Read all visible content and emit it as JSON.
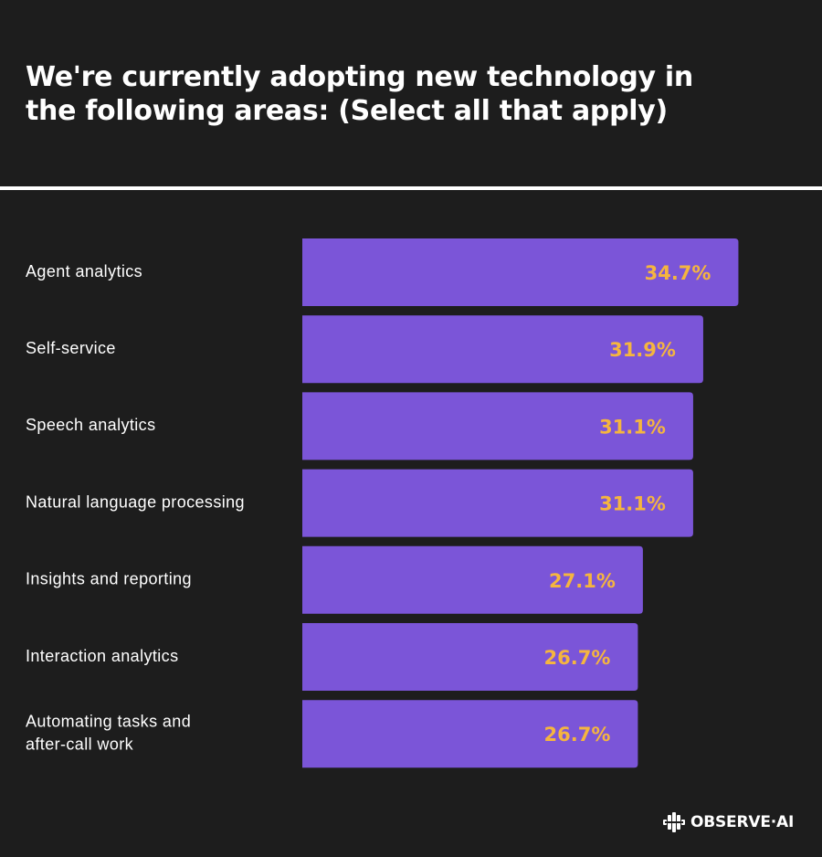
{
  "title": "We're currently adopting new technology in the following areas: (Select all that apply)",
  "brand": {
    "logo_text": "OBSERVE·AI"
  },
  "colors": {
    "background": "#1d1d1d",
    "bar": "#7b55d8",
    "value_label": "#f5b53f",
    "text": "#ffffff"
  },
  "chart_data": {
    "type": "bar",
    "orientation": "horizontal",
    "categories": [
      [
        "Agent analytics"
      ],
      [
        "Self-service"
      ],
      [
        "Speech analytics"
      ],
      [
        "Natural language processing"
      ],
      [
        "Insights and reporting"
      ],
      [
        "Interaction analytics"
      ],
      [
        "Automating tasks and",
        "after-call work"
      ]
    ],
    "values": [
      34.7,
      31.9,
      31.1,
      31.1,
      27.1,
      26.7,
      26.7
    ],
    "value_labels": [
      "34.7%",
      "31.9%",
      "31.1%",
      "31.1%",
      "27.1%",
      "26.7%",
      "26.7%"
    ],
    "unit": "%",
    "grid": false,
    "legend": "none"
  }
}
